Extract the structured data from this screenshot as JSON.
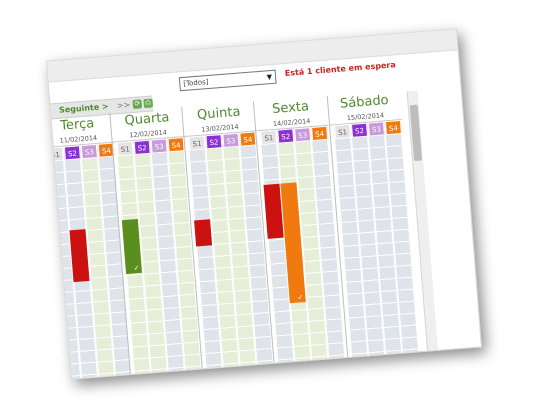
{
  "filter": {
    "selected": "[Todos]"
  },
  "alert_text": "Está 1 cliente em espera",
  "nav": {
    "next_label": "Seguinte >",
    "fastforward_label": ">>"
  },
  "slot_labels": [
    "S1",
    "S2",
    "S3",
    "S4"
  ],
  "days": [
    {
      "name": "Terça",
      "date": "11/02/2014"
    },
    {
      "name": "Quarta",
      "date": "12/02/2014"
    },
    {
      "name": "Quinta",
      "date": "13/02/2014"
    },
    {
      "name": "Sexta",
      "date": "14/02/2014"
    },
    {
      "name": "Sábado",
      "date": "15/02/2014"
    }
  ],
  "appointments": [
    {
      "day": 0,
      "color": "#cc1111",
      "checked": false
    },
    {
      "day": 1,
      "color": "#5a8f1f",
      "checked": true
    },
    {
      "day": 2,
      "color": "#cc1111",
      "checked": false
    },
    {
      "day": 3,
      "color": "#cc1111",
      "checked": false
    },
    {
      "day": 3,
      "color": "#f07a10",
      "checked": true
    }
  ],
  "icons": {
    "refresh": "refresh-icon",
    "print": "print-icon",
    "check": "checkmark-icon",
    "dropdown": "dropdown-arrow-icon"
  },
  "colors": {
    "accent_green": "#4d8a2e",
    "alert_red": "#cc2222",
    "slot_purple": "#8b2fd6",
    "slot_orange": "#f07a10"
  }
}
